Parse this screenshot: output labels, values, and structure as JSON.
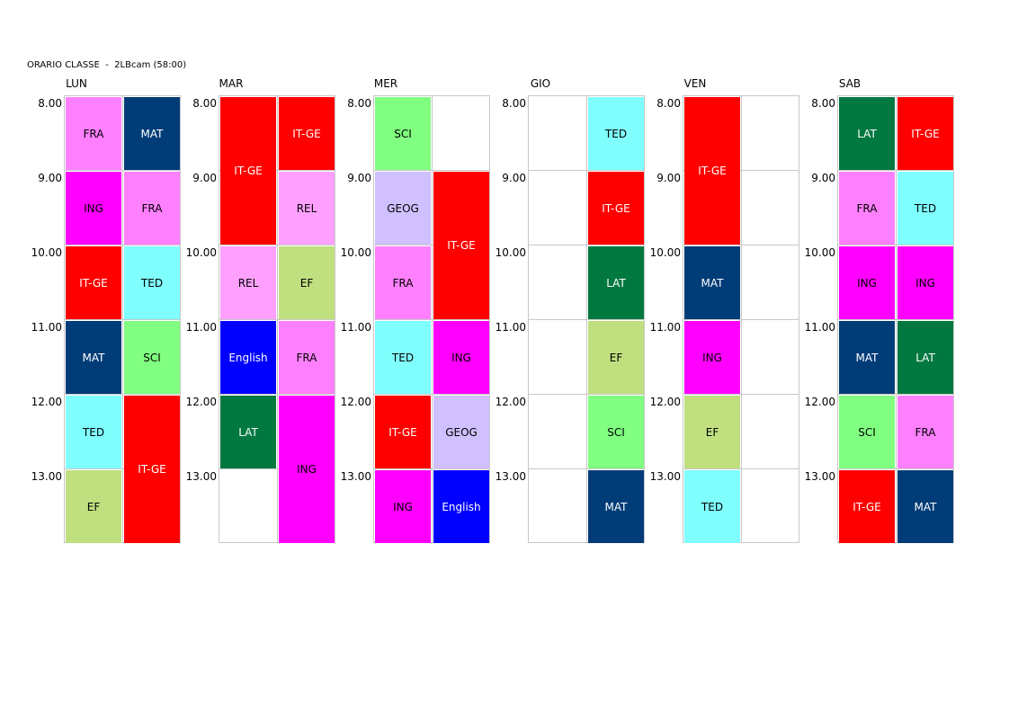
{
  "title": "ORARIO CLASSE  -  2LBcam (58:00)",
  "hours": [
    "8.00",
    "9.00",
    "10.00",
    "11.00",
    "12.00",
    "13.00"
  ],
  "colors": {
    "FRA": "#ff80ff",
    "MAT": "#003c78",
    "ING": "#ff00ff",
    "IT-GE": "#ff0000",
    "TED": "#80ffff",
    "SCI": "#80ff80",
    "EF": "#c0e080",
    "REL": "#ffa0ff",
    "English": "#0000ff",
    "LAT": "#007840",
    "GEOG": "#d0c0ff"
  },
  "text_colors": {
    "FRA": "#000000",
    "MAT": "#ffffff",
    "ING": "#000000",
    "IT-GE": "#ffffff",
    "TED": "#000000",
    "SCI": "#000000",
    "EF": "#000000",
    "REL": "#000000",
    "English": "#ffffff",
    "LAT": "#ffffff",
    "GEOG": "#000000"
  },
  "days": [
    {
      "label": "LUN",
      "lessons": [
        {
          "subject": "FRA",
          "col": 0,
          "start": 0,
          "span": 1
        },
        {
          "subject": "MAT",
          "col": 1,
          "start": 0,
          "span": 1
        },
        {
          "subject": "ING",
          "col": 0,
          "start": 1,
          "span": 1
        },
        {
          "subject": "FRA",
          "col": 1,
          "start": 1,
          "span": 1
        },
        {
          "subject": "IT-GE",
          "col": 0,
          "start": 2,
          "span": 1
        },
        {
          "subject": "TED",
          "col": 1,
          "start": 2,
          "span": 1
        },
        {
          "subject": "MAT",
          "col": 0,
          "start": 3,
          "span": 1
        },
        {
          "subject": "SCI",
          "col": 1,
          "start": 3,
          "span": 1
        },
        {
          "subject": "TED",
          "col": 0,
          "start": 4,
          "span": 1
        },
        {
          "subject": "IT-GE",
          "col": 1,
          "start": 4,
          "span": 2
        },
        {
          "subject": "EF",
          "col": 0,
          "start": 5,
          "span": 1
        }
      ]
    },
    {
      "label": "MAR",
      "lessons": [
        {
          "subject": "IT-GE",
          "col": 0,
          "start": 0,
          "span": 2
        },
        {
          "subject": "IT-GE",
          "col": 1,
          "start": 0,
          "span": 1
        },
        {
          "subject": "REL",
          "col": 1,
          "start": 1,
          "span": 1
        },
        {
          "subject": "REL",
          "col": 0,
          "start": 2,
          "span": 1
        },
        {
          "subject": "EF",
          "col": 1,
          "start": 2,
          "span": 1
        },
        {
          "subject": "English",
          "col": 0,
          "start": 3,
          "span": 1
        },
        {
          "subject": "FRA",
          "col": 1,
          "start": 3,
          "span": 1
        },
        {
          "subject": "LAT",
          "col": 0,
          "start": 4,
          "span": 1
        },
        {
          "subject": "ING",
          "col": 1,
          "start": 4,
          "span": 2
        }
      ]
    },
    {
      "label": "MER",
      "lessons": [
        {
          "subject": "SCI",
          "col": 0,
          "start": 0,
          "span": 1
        },
        {
          "subject": "GEOG",
          "col": 0,
          "start": 1,
          "span": 1
        },
        {
          "subject": "IT-GE",
          "col": 1,
          "start": 1,
          "span": 2
        },
        {
          "subject": "FRA",
          "col": 0,
          "start": 2,
          "span": 1
        },
        {
          "subject": "TED",
          "col": 0,
          "start": 3,
          "span": 1
        },
        {
          "subject": "ING",
          "col": 1,
          "start": 3,
          "span": 1
        },
        {
          "subject": "IT-GE",
          "col": 0,
          "start": 4,
          "span": 1
        },
        {
          "subject": "GEOG",
          "col": 1,
          "start": 4,
          "span": 1
        },
        {
          "subject": "ING",
          "col": 0,
          "start": 5,
          "span": 1
        },
        {
          "subject": "English",
          "col": 1,
          "start": 5,
          "span": 1
        }
      ]
    },
    {
      "label": "GIO",
      "lessons": [
        {
          "subject": "TED",
          "col": 1,
          "start": 0,
          "span": 1
        },
        {
          "subject": "IT-GE",
          "col": 1,
          "start": 1,
          "span": 1
        },
        {
          "subject": "LAT",
          "col": 1,
          "start": 2,
          "span": 1
        },
        {
          "subject": "EF",
          "col": 1,
          "start": 3,
          "span": 1
        },
        {
          "subject": "SCI",
          "col": 1,
          "start": 4,
          "span": 1
        },
        {
          "subject": "MAT",
          "col": 1,
          "start": 5,
          "span": 1
        }
      ]
    },
    {
      "label": "VEN",
      "lessons": [
        {
          "subject": "IT-GE",
          "col": 0,
          "start": 0,
          "span": 2
        },
        {
          "subject": "MAT",
          "col": 0,
          "start": 2,
          "span": 1
        },
        {
          "subject": "ING",
          "col": 0,
          "start": 3,
          "span": 1
        },
        {
          "subject": "EF",
          "col": 0,
          "start": 4,
          "span": 1
        },
        {
          "subject": "TED",
          "col": 0,
          "start": 5,
          "span": 1
        }
      ]
    },
    {
      "label": "SAB",
      "lessons": [
        {
          "subject": "LAT",
          "col": 0,
          "start": 0,
          "span": 1
        },
        {
          "subject": "IT-GE",
          "col": 1,
          "start": 0,
          "span": 1
        },
        {
          "subject": "FRA",
          "col": 0,
          "start": 1,
          "span": 1
        },
        {
          "subject": "TED",
          "col": 1,
          "start": 1,
          "span": 1
        },
        {
          "subject": "ING",
          "col": 0,
          "start": 2,
          "span": 1
        },
        {
          "subject": "ING",
          "col": 1,
          "start": 2,
          "span": 1
        },
        {
          "subject": "MAT",
          "col": 0,
          "start": 3,
          "span": 1
        },
        {
          "subject": "LAT",
          "col": 1,
          "start": 3,
          "span": 1
        },
        {
          "subject": "SCI",
          "col": 0,
          "start": 4,
          "span": 1
        },
        {
          "subject": "FRA",
          "col": 1,
          "start": 4,
          "span": 1
        },
        {
          "subject": "IT-GE",
          "col": 0,
          "start": 5,
          "span": 1
        },
        {
          "subject": "MAT",
          "col": 1,
          "start": 5,
          "span": 1
        }
      ]
    }
  ]
}
